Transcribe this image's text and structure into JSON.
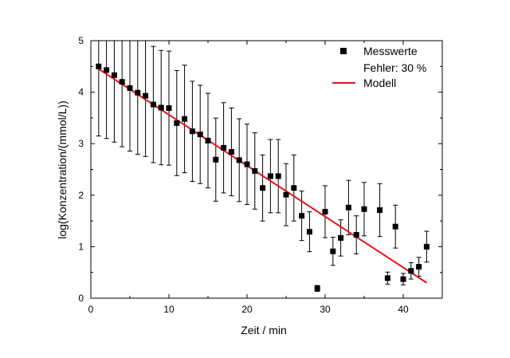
{
  "chart_data": {
    "type": "scatter",
    "xlabel": "Zeit / min",
    "ylabel": "log(Konzentration/(mmol/L))",
    "xlim": [
      0,
      45
    ],
    "ylim": [
      0,
      5
    ],
    "xticks": [
      0,
      10,
      20,
      30,
      40
    ],
    "yticks": [
      0,
      1,
      2,
      3,
      4,
      5
    ],
    "x_tick_labels": [
      "0",
      "10",
      "20",
      "30",
      "40"
    ],
    "y_tick_labels": [
      "0",
      "1",
      "2",
      "3",
      "4",
      "5"
    ],
    "grid": false,
    "legend_position": "top-right",
    "legend": {
      "measured": "Messwerte",
      "error_note": "Fehler: 30 %",
      "model": "Modell"
    },
    "series": [
      {
        "name": "Messwerte",
        "marker": "square",
        "color": "#000000",
        "error_fraction": 0.3,
        "x": [
          1,
          2,
          3,
          4,
          5,
          6,
          7,
          8,
          9,
          10,
          11,
          12,
          13,
          14,
          15,
          16,
          17,
          18,
          19,
          20,
          21,
          22,
          23,
          24,
          25,
          26,
          27,
          28,
          29,
          30,
          31,
          32,
          33,
          34,
          35,
          37,
          38,
          39,
          40,
          41,
          42,
          43
        ],
        "y": [
          4.5,
          4.43,
          4.33,
          4.2,
          4.08,
          3.99,
          3.93,
          3.76,
          3.7,
          3.69,
          3.4,
          3.48,
          3.24,
          3.18,
          3.06,
          2.69,
          2.92,
          2.84,
          2.68,
          2.6,
          2.47,
          2.14,
          2.37,
          2.37,
          2.01,
          2.14,
          1.6,
          1.29,
          0.19,
          1.68,
          0.91,
          1.17,
          1.76,
          1.23,
          1.73,
          1.71,
          0.39,
          1.39,
          0.37,
          0.53,
          0.61,
          1.0
        ]
      },
      {
        "name": "Modell",
        "type": "line",
        "color": "#e8141b",
        "x": [
          1,
          43
        ],
        "y": [
          4.45,
          0.3
        ]
      }
    ]
  }
}
